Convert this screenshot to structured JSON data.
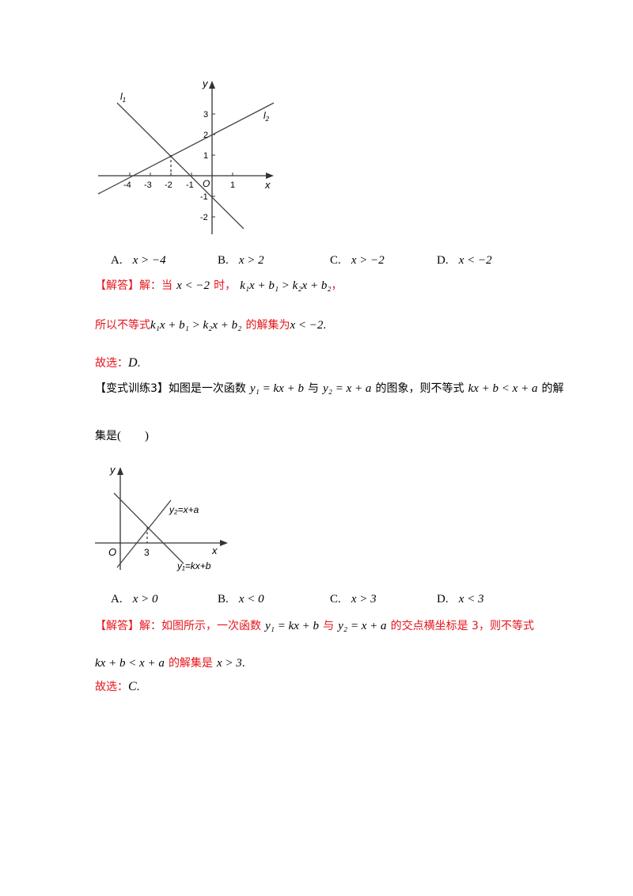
{
  "figure1": {
    "y_axis": "y",
    "x_axis": "x",
    "origin": "O",
    "line1_label": "l",
    "line1_sub": "1",
    "line2_label": "l",
    "line2_sub": "2",
    "x_ticks": [
      "-4",
      "-3",
      "-2",
      "-1",
      "1"
    ],
    "y_ticks": [
      "3",
      "2",
      "1",
      "-1",
      "-2"
    ]
  },
  "q1_options": [
    {
      "letter": "A.",
      "math": "x > −4"
    },
    {
      "letter": "B.",
      "math": "x > 2"
    },
    {
      "letter": "C.",
      "math": "x > −2"
    },
    {
      "letter": "D.",
      "math": "x < −2"
    }
  ],
  "answer1": {
    "tag": "【解答】",
    "line1_a": "解：当",
    "line1_m1": "x < −2",
    "line1_b": "时，",
    "line1_m2": "k₁x + b₁ > k₂x + b₂",
    "line1_c": "，",
    "line2_a": "所以不等式",
    "line2_m1": "k₁x + b₁ > k₂x + b₂",
    "line2_b": "的解集为",
    "line2_m2": "x < −2",
    "line2_c": ".",
    "choice_prefix": "故选：",
    "choice": "D",
    "choice_suffix": "."
  },
  "exercise3": {
    "tag": "【变式训练3】",
    "t1": "如图是一次函数",
    "m1": "y₁ = kx + b",
    "t2": "与",
    "m2": "y₂ = x + a",
    "t3": "的图象，则不等式",
    "m3": "kx + b < x + a",
    "t4": "的解",
    "t5": "集是",
    "paren": "(        )"
  },
  "figure2": {
    "y_axis": "y",
    "x_axis": "x",
    "origin": "O",
    "tick": "3",
    "line_y2": "y₂=x+a",
    "line_y1": "y₁=kx+b"
  },
  "q2_options": [
    {
      "letter": "A.",
      "math": "x > 0"
    },
    {
      "letter": "B.",
      "math": "x < 0"
    },
    {
      "letter": "C.",
      "math": "x > 3"
    },
    {
      "letter": "D.",
      "math": "x < 3"
    }
  ],
  "answer2": {
    "tag": "【解答】",
    "t1": "解：如图所示，一次函数",
    "m1": "y₁ = kx + b",
    "t2": "与",
    "m2": "y₂ = x + a",
    "t3": "的交点横坐标是 3，则不等式",
    "m3": "kx + b < x + a",
    "t4": "的解集是",
    "m4": "x > 3",
    "t5": ".",
    "choice_prefix": "故选：",
    "choice": "C",
    "choice_suffix": "."
  }
}
